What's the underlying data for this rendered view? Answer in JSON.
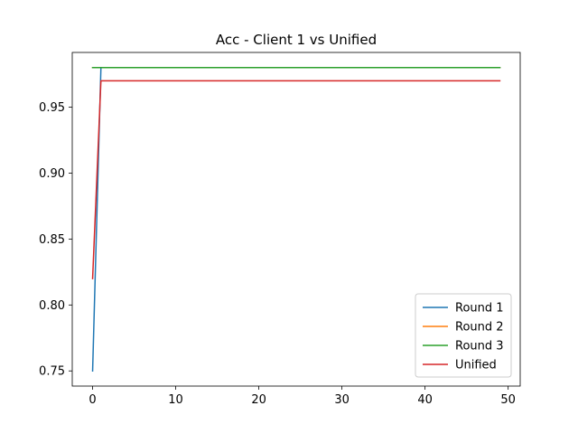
{
  "chart_data": {
    "type": "line",
    "title": "Acc - Client 1 vs Unified",
    "xlabel": "",
    "ylabel": "",
    "xlim": [
      -2.45,
      51.45
    ],
    "ylim": [
      0.7385,
      0.9915
    ],
    "xticks": [
      0,
      10,
      20,
      30,
      40,
      50
    ],
    "yticks": [
      0.75,
      0.8,
      0.85,
      0.9,
      0.95
    ],
    "ytick_labels": [
      "0.75",
      "0.80",
      "0.85",
      "0.90",
      "0.95"
    ],
    "grid": false,
    "legend_position": "lower-right",
    "series": [
      {
        "name": "Round 1",
        "color": "#1f77b4",
        "x": [
          0,
          1,
          49
        ],
        "y": [
          0.75,
          0.98,
          0.98
        ]
      },
      {
        "name": "Round 2",
        "color": "#ff7f0e",
        "x": [
          0,
          49
        ],
        "y": [
          0.98,
          0.98
        ]
      },
      {
        "name": "Round 3",
        "color": "#2ca02c",
        "x": [
          0,
          49
        ],
        "y": [
          0.98,
          0.98
        ]
      },
      {
        "name": "Unified",
        "color": "#d62728",
        "x": [
          0,
          1,
          49
        ],
        "y": [
          0.82,
          0.97,
          0.97
        ]
      }
    ]
  }
}
